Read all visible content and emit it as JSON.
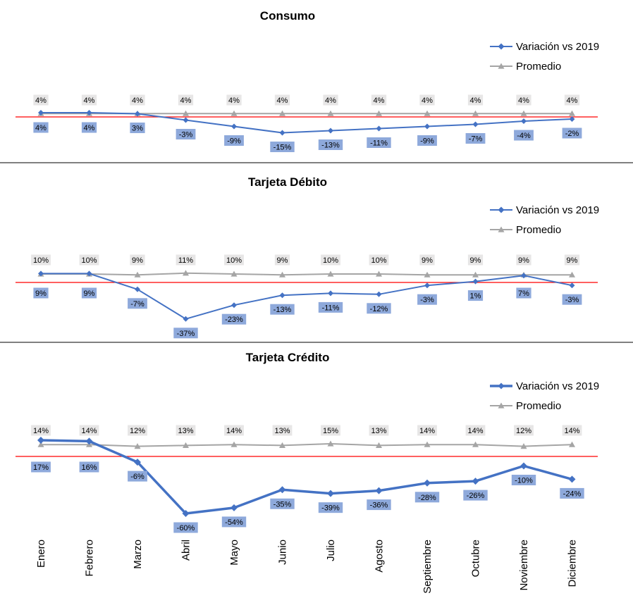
{
  "colors": {
    "variation": "#4472C4",
    "variation_label_bg": "#8EA9DB",
    "average": "#A5A5A5",
    "average_label_bg": "#E7E6E6",
    "zero_line": "#FF0000",
    "separator": "#000000"
  },
  "chart_data": [
    {
      "type": "line",
      "title": "Consumo",
      "categories": [
        "Enero",
        "Febrero",
        "Marzo",
        "Abril",
        "Mayo",
        "Junio",
        "Julio",
        "Agosto",
        "Septiembre",
        "Octubre",
        "Noviembre",
        "Diciembre"
      ],
      "series": [
        {
          "name": "Variación vs 2019",
          "values": [
            4,
            4,
            3,
            -3,
            -9,
            -15,
            -13,
            -11,
            -9,
            -7,
            -4,
            -2
          ]
        },
        {
          "name": "Promedio",
          "values": [
            4,
            4,
            4,
            4,
            4,
            4,
            4,
            4,
            4,
            4,
            4,
            4
          ]
        }
      ],
      "legend": "top-right"
    },
    {
      "type": "line",
      "title": "Tarjeta Débito",
      "categories": [
        "Enero",
        "Febrero",
        "Marzo",
        "Abril",
        "Mayo",
        "Junio",
        "Julio",
        "Agosto",
        "Septiembre",
        "Octubre",
        "Noviembre",
        "Diciembre"
      ],
      "series": [
        {
          "name": "Variación vs 2019",
          "values": [
            9,
            9,
            -7,
            -37,
            -23,
            -13,
            -11,
            -12,
            -3,
            1,
            7,
            -3
          ]
        },
        {
          "name": "Promedio",
          "values": [
            10,
            10,
            9,
            11,
            10,
            9,
            10,
            10,
            9,
            9,
            9,
            9
          ]
        }
      ],
      "legend": "top-right"
    },
    {
      "type": "line",
      "title": "Tarjeta Crédito",
      "categories": [
        "Enero",
        "Febrero",
        "Marzo",
        "Abril",
        "Mayo",
        "Junio",
        "Julio",
        "Agosto",
        "Septiembre",
        "Octubre",
        "Noviembre",
        "Diciembre"
      ],
      "series": [
        {
          "name": "Variación vs 2019",
          "values": [
            17,
            16,
            -6,
            -60,
            -54,
            -35,
            -39,
            -36,
            -28,
            -26,
            -10,
            -24
          ]
        },
        {
          "name": "Promedio",
          "values": [
            14,
            14,
            12,
            13,
            14,
            13,
            15,
            13,
            14,
            14,
            12,
            14
          ]
        }
      ],
      "legend": "top-right"
    }
  ]
}
